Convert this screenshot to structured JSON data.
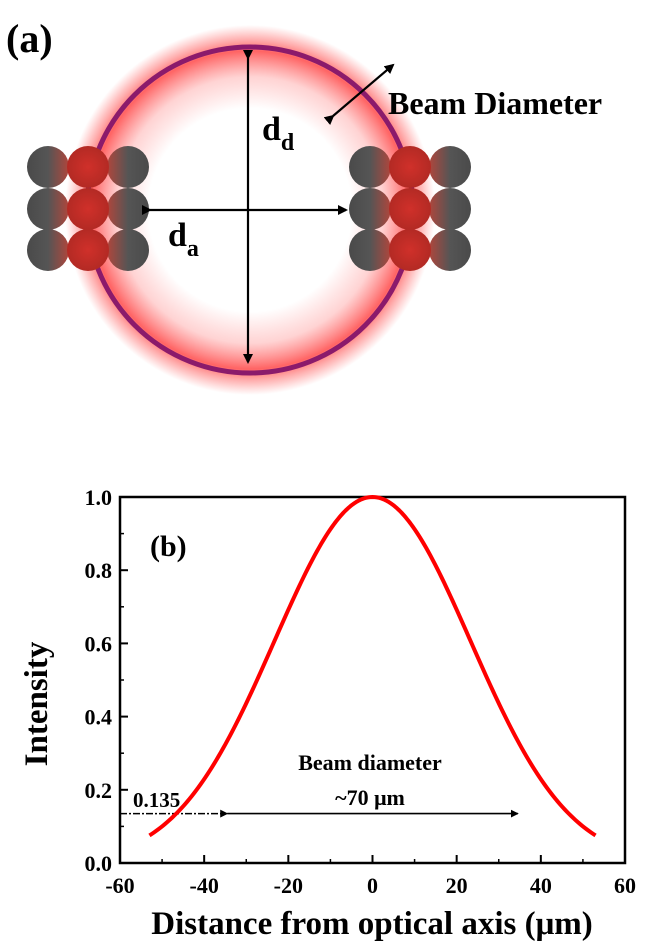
{
  "panel_a": {
    "label": "(a)",
    "beam_diameter_label": "Beam Diameter",
    "dd_main": "d",
    "dd_sub": "d",
    "da_main": "d",
    "da_sub": "a",
    "colors": {
      "ring": "#8B1A6B",
      "glow": "#ff3b3b",
      "sphere_dark": "#4a4a4a",
      "sphere_red": "#c0302a"
    }
  },
  "panel_b": {
    "label": "(b)",
    "annotation_line1": "Beam diameter",
    "annotation_line2": "~70 μm",
    "threshold_label": "0.135"
  },
  "chart_data": {
    "type": "line",
    "xlabel": "Distance from optical axis (μm)",
    "ylabel": "Intensity",
    "xlim": [
      -60,
      60
    ],
    "ylim": [
      0.0,
      1.0
    ],
    "x_ticks": [
      -60,
      -40,
      -20,
      0,
      20,
      40,
      60
    ],
    "y_ticks": [
      0.0,
      0.2,
      0.4,
      0.6,
      0.8,
      1.0
    ],
    "x_tick_labels": [
      "-60",
      "-40",
      "-20",
      "0",
      "20",
      "40",
      "60"
    ],
    "y_tick_labels": [
      "0.0",
      "0.2",
      "0.4",
      "0.6",
      "0.8",
      "1.0"
    ],
    "series": [
      {
        "color": "#ff0000",
        "x": [
          -53,
          -50,
          -45,
          -40,
          -35,
          -30,
          -25,
          -20,
          -15,
          -10,
          -5,
          0,
          5,
          10,
          15,
          20,
          25,
          30,
          35,
          40,
          45,
          50,
          53
        ],
        "y": [
          0.01,
          0.017,
          0.048,
          0.11,
          0.205,
          0.32,
          0.455,
          0.597,
          0.74,
          0.868,
          0.966,
          1.0,
          0.966,
          0.868,
          0.74,
          0.597,
          0.455,
          0.32,
          0.205,
          0.11,
          0.048,
          0.017,
          0.01
        ]
      }
    ],
    "threshold_y": 0.135,
    "beam_diameter_span": [
      -35,
      35
    ],
    "grid": false
  }
}
